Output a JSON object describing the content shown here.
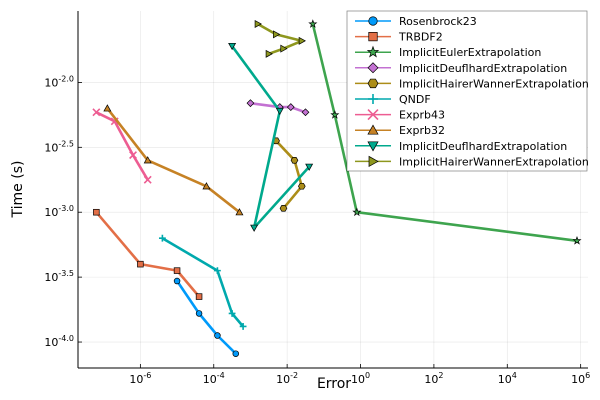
{
  "chart_data": {
    "type": "line",
    "title": "",
    "xlabel": "Error",
    "ylabel": "Time (s)",
    "xscale": "log10",
    "yscale": "log10",
    "xlim_exp": [
      -7.7,
      6.2
    ],
    "ylim_exp": [
      -4.2,
      -1.45
    ],
    "x_ticks": [
      {
        "exp": -6,
        "base": "10",
        "sup": "-6"
      },
      {
        "exp": -4,
        "base": "10",
        "sup": "-4"
      },
      {
        "exp": -2,
        "base": "10",
        "sup": "-2"
      },
      {
        "exp": 0,
        "base": "10",
        "sup": "0"
      },
      {
        "exp": 2,
        "base": "10",
        "sup": "2"
      },
      {
        "exp": 4,
        "base": "10",
        "sup": "4"
      },
      {
        "exp": 6,
        "base": "10",
        "sup": "6"
      }
    ],
    "y_ticks": [
      {
        "exp": -4.0,
        "base": "10",
        "sup": "-4.0"
      },
      {
        "exp": -3.5,
        "base": "10",
        "sup": "-3.5"
      },
      {
        "exp": -3.0,
        "base": "10",
        "sup": "-3.0"
      },
      {
        "exp": -2.5,
        "base": "10",
        "sup": "-2.5"
      },
      {
        "exp": -2.0,
        "base": "10",
        "sup": "-2.0"
      }
    ],
    "grid": true,
    "legend_position": "top-right",
    "series": [
      {
        "name": "Rosenbrock23",
        "color": "#009AFA",
        "marker": "circle",
        "points": [
          [
            -5.0,
            -3.53
          ],
          [
            -4.4,
            -3.78
          ],
          [
            -3.9,
            -3.95
          ],
          [
            -3.4,
            -4.09
          ]
        ]
      },
      {
        "name": "TRBDF2",
        "color": "#E36F47",
        "marker": "square",
        "points": [
          [
            -7.2,
            -3.0
          ],
          [
            -6.0,
            -3.4
          ],
          [
            -5.0,
            -3.45
          ],
          [
            -4.4,
            -3.65
          ]
        ]
      },
      {
        "name": "ImplicitEulerExtrapolation",
        "color": "#3EA44E",
        "marker": "star",
        "points": [
          [
            -1.3,
            -1.55
          ],
          [
            -0.7,
            -2.25
          ],
          [
            -0.1,
            -3.0
          ],
          [
            5.9,
            -3.22
          ]
        ]
      },
      {
        "name": "ImplicitDeuflhardExtrapolation",
        "color": "#C371D2",
        "marker": "diamond",
        "points": [
          [
            -3.0,
            -2.16
          ],
          [
            -2.2,
            -2.19
          ],
          [
            -1.9,
            -2.19
          ],
          [
            -1.5,
            -2.23
          ]
        ]
      },
      {
        "name": "ImplicitHairerWannerExtrapolation",
        "color": "#AC8D18",
        "marker": "hexagon",
        "points": [
          [
            -2.3,
            -2.45
          ],
          [
            -1.8,
            -2.6
          ],
          [
            -1.6,
            -2.8
          ],
          [
            -2.1,
            -2.97
          ]
        ]
      },
      {
        "name": "QNDF",
        "color": "#00A9AD",
        "marker": "cross",
        "points": [
          [
            -5.4,
            -3.2
          ],
          [
            -3.9,
            -3.45
          ],
          [
            -3.5,
            -3.78
          ],
          [
            -3.2,
            -3.88
          ]
        ]
      },
      {
        "name": "Exprb43",
        "color": "#ED5D92",
        "marker": "x",
        "points": [
          [
            -7.2,
            -2.23
          ],
          [
            -6.7,
            -2.3
          ],
          [
            -6.2,
            -2.56
          ],
          [
            -5.8,
            -2.75
          ]
        ]
      },
      {
        "name": "Exprb32",
        "color": "#C68225",
        "marker": "triangle-up",
        "points": [
          [
            -6.9,
            -2.2
          ],
          [
            -5.8,
            -2.6
          ],
          [
            -4.2,
            -2.8
          ],
          [
            -3.3,
            -3.0
          ]
        ]
      },
      {
        "name": "ImplicitDeuflhardExtrapolation",
        "color": "#00A98D",
        "marker": "triangle-down",
        "points": [
          [
            -3.5,
            -1.72
          ],
          [
            -2.2,
            -2.22
          ],
          [
            -2.9,
            -3.12
          ],
          [
            -1.4,
            -2.65
          ]
        ]
      },
      {
        "name": "ImplicitHairerWannerExtrapolation",
        "color": "#8E971E",
        "marker": "triangle-right",
        "points": [
          [
            -2.8,
            -1.55
          ],
          [
            -2.3,
            -1.63
          ],
          [
            -1.6,
            -1.68
          ],
          [
            -2.1,
            -1.74
          ],
          [
            -2.5,
            -1.78
          ]
        ]
      }
    ]
  }
}
